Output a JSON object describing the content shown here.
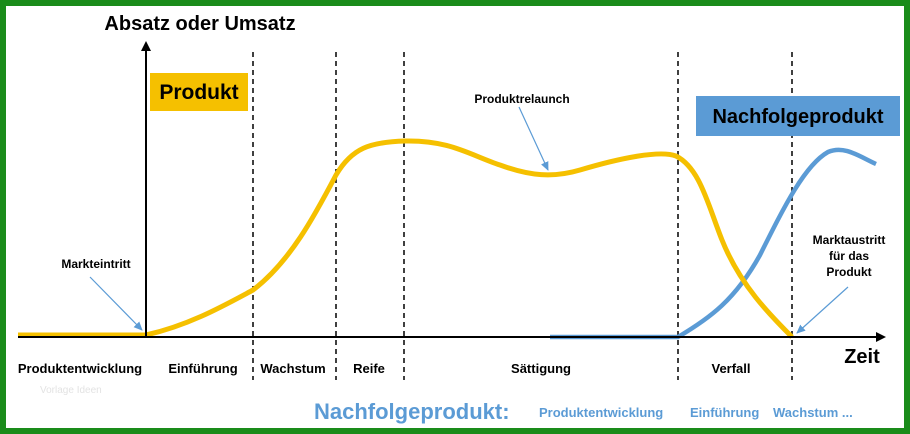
{
  "y_axis_label": "Absatz oder Umsatz",
  "x_axis_label": "Zeit",
  "product_box_label": "Produkt",
  "successor_box_label": "Nachfolgeprodukt",
  "annotations": {
    "market_entry": "Markteintritt",
    "relaunch": "Produktrelaunch",
    "market_exit_line1": "Marktaustritt",
    "market_exit_line2": "für das",
    "market_exit_line3": "Produkt"
  },
  "phases": [
    "Produktentwicklung",
    "Einführung",
    "Wachstum",
    "Reife",
    "Sättigung",
    "Verfall"
  ],
  "successor_row": {
    "title": "Nachfolgeprodukt:",
    "phases": [
      "Produktentwicklung",
      "Einführung",
      "Wachstum ..."
    ]
  },
  "watermark": "Vorlage Ideen",
  "colors": {
    "frame": "#1a8c1a",
    "product": "#f5c000",
    "successor": "#5b9bd5",
    "axis": "#000000"
  }
}
